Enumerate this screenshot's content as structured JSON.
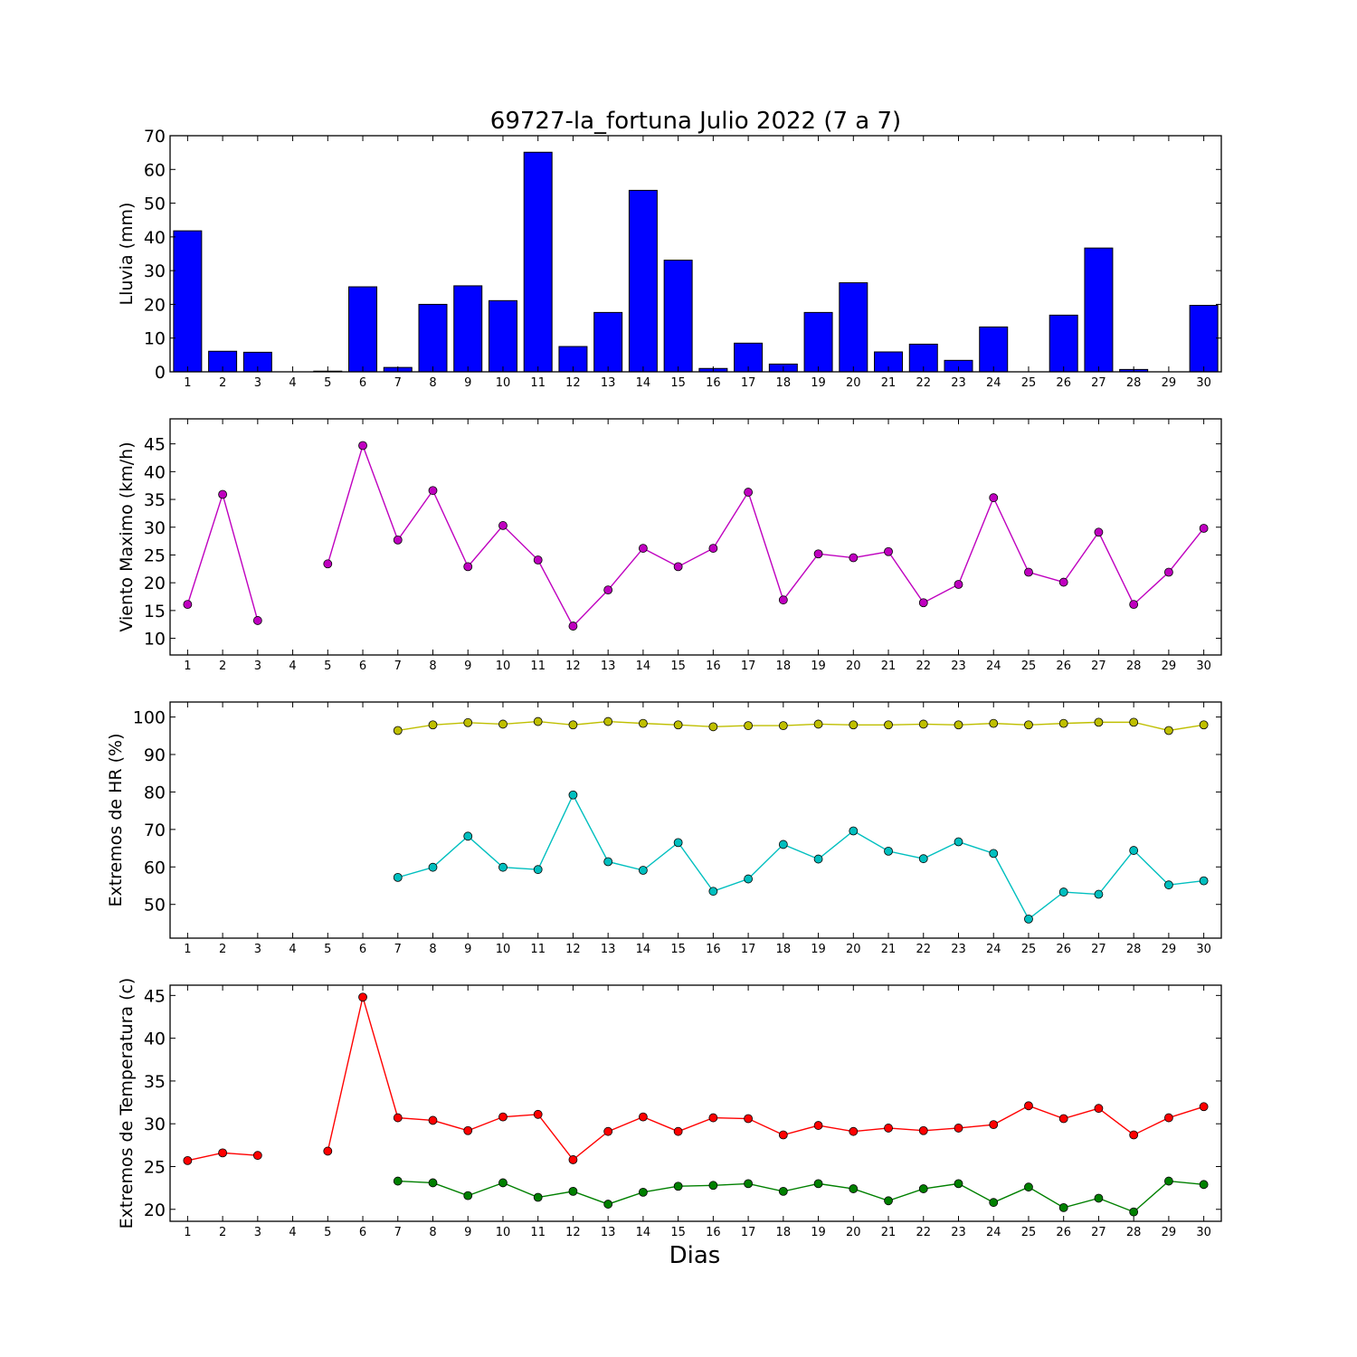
{
  "chart_data": {
    "title": "69727-la_fortuna Julio 2022  (7 a 7)",
    "xlabel": "Dias",
    "days": [
      1,
      2,
      3,
      4,
      5,
      6,
      7,
      8,
      9,
      10,
      11,
      12,
      13,
      14,
      15,
      16,
      17,
      18,
      19,
      20,
      21,
      22,
      23,
      24,
      25,
      26,
      27,
      28,
      29,
      30
    ],
    "grid": false,
    "panels": [
      {
        "id": "lluvia",
        "type": "bar",
        "ylabel": "Lluvia (mm)",
        "ylim": [
          0,
          70
        ],
        "yticks": [
          0,
          10,
          20,
          30,
          40,
          50,
          60,
          70
        ],
        "series": [
          {
            "color": "#0000ff",
            "values": [
              41.8,
              6.1,
              5.8,
              0,
              0.2,
              25.2,
              1.3,
              20.0,
              25.5,
              21.1,
              65.1,
              7.5,
              17.6,
              53.8,
              33.1,
              1.0,
              8.5,
              2.3,
              17.6,
              26.4,
              5.9,
              8.2,
              3.4,
              13.3,
              0,
              16.8,
              36.7,
              0.7,
              0,
              19.7
            ]
          }
        ]
      },
      {
        "id": "viento",
        "type": "line",
        "ylabel": "Viento Maximo (km/h)",
        "ylim": [
          7,
          49.5
        ],
        "yticks": [
          10,
          15,
          20,
          25,
          30,
          35,
          40,
          45
        ],
        "series": [
          {
            "color": "#bf00bf",
            "values": [
              16.1,
              35.9,
              13.2,
              null,
              23.4,
              44.7,
              27.7,
              36.6,
              22.9,
              30.3,
              24.1,
              12.2,
              18.7,
              26.2,
              22.9,
              26.2,
              36.3,
              16.9,
              25.2,
              24.5,
              25.6,
              16.4,
              19.7,
              35.3,
              21.9,
              20.1,
              29.1,
              16.1,
              21.9,
              29.8
            ]
          }
        ]
      },
      {
        "id": "humedad",
        "type": "line",
        "ylabel": "Extremos de HR (%)",
        "ylim": [
          41,
          104
        ],
        "yticks": [
          50,
          60,
          70,
          80,
          90,
          100
        ],
        "series": [
          {
            "color": "#bfbf00",
            "values": [
              null,
              null,
              null,
              null,
              null,
              null,
              96.4,
              97.9,
              98.5,
              98.1,
              98.8,
              97.9,
              98.8,
              98.3,
              97.9,
              97.4,
              97.7,
              97.7,
              98.1,
              97.9,
              97.9,
              98.1,
              97.9,
              98.3,
              97.9,
              98.3,
              98.6,
              98.6,
              96.4,
              97.9
            ]
          },
          {
            "color": "#00bfbf",
            "values": [
              null,
              null,
              null,
              null,
              null,
              null,
              57.2,
              59.9,
              68.2,
              59.9,
              59.3,
              79.2,
              61.4,
              59.1,
              66.5,
              53.5,
              56.8,
              66.0,
              62.1,
              69.6,
              64.2,
              62.2,
              66.7,
              63.6,
              46.1,
              53.3,
              52.7,
              64.4,
              55.2,
              56.3
            ]
          }
        ]
      },
      {
        "id": "temperatura",
        "type": "line",
        "ylabel": "Extremos de Temperatura (c)",
        "ylim": [
          18.6,
          46.2
        ],
        "yticks": [
          20,
          25,
          30,
          35,
          40,
          45
        ],
        "series": [
          {
            "color": "#ff0000",
            "values": [
              25.7,
              26.6,
              26.3,
              null,
              26.8,
              44.8,
              30.7,
              30.4,
              29.2,
              30.8,
              31.1,
              25.8,
              29.1,
              30.8,
              29.1,
              30.7,
              30.6,
              28.7,
              29.8,
              29.1,
              29.5,
              29.2,
              29.5,
              29.9,
              32.1,
              30.6,
              31.8,
              28.7,
              30.7,
              32.0
            ]
          },
          {
            "color": "#008000",
            "values": [
              null,
              null,
              null,
              null,
              null,
              null,
              23.3,
              23.1,
              21.6,
              23.1,
              21.4,
              22.1,
              20.6,
              22.0,
              22.7,
              22.8,
              23.0,
              22.1,
              23.0,
              22.4,
              21.0,
              22.4,
              23.0,
              20.8,
              22.6,
              20.2,
              21.3,
              19.7,
              23.3,
              22.9
            ]
          }
        ]
      }
    ]
  }
}
